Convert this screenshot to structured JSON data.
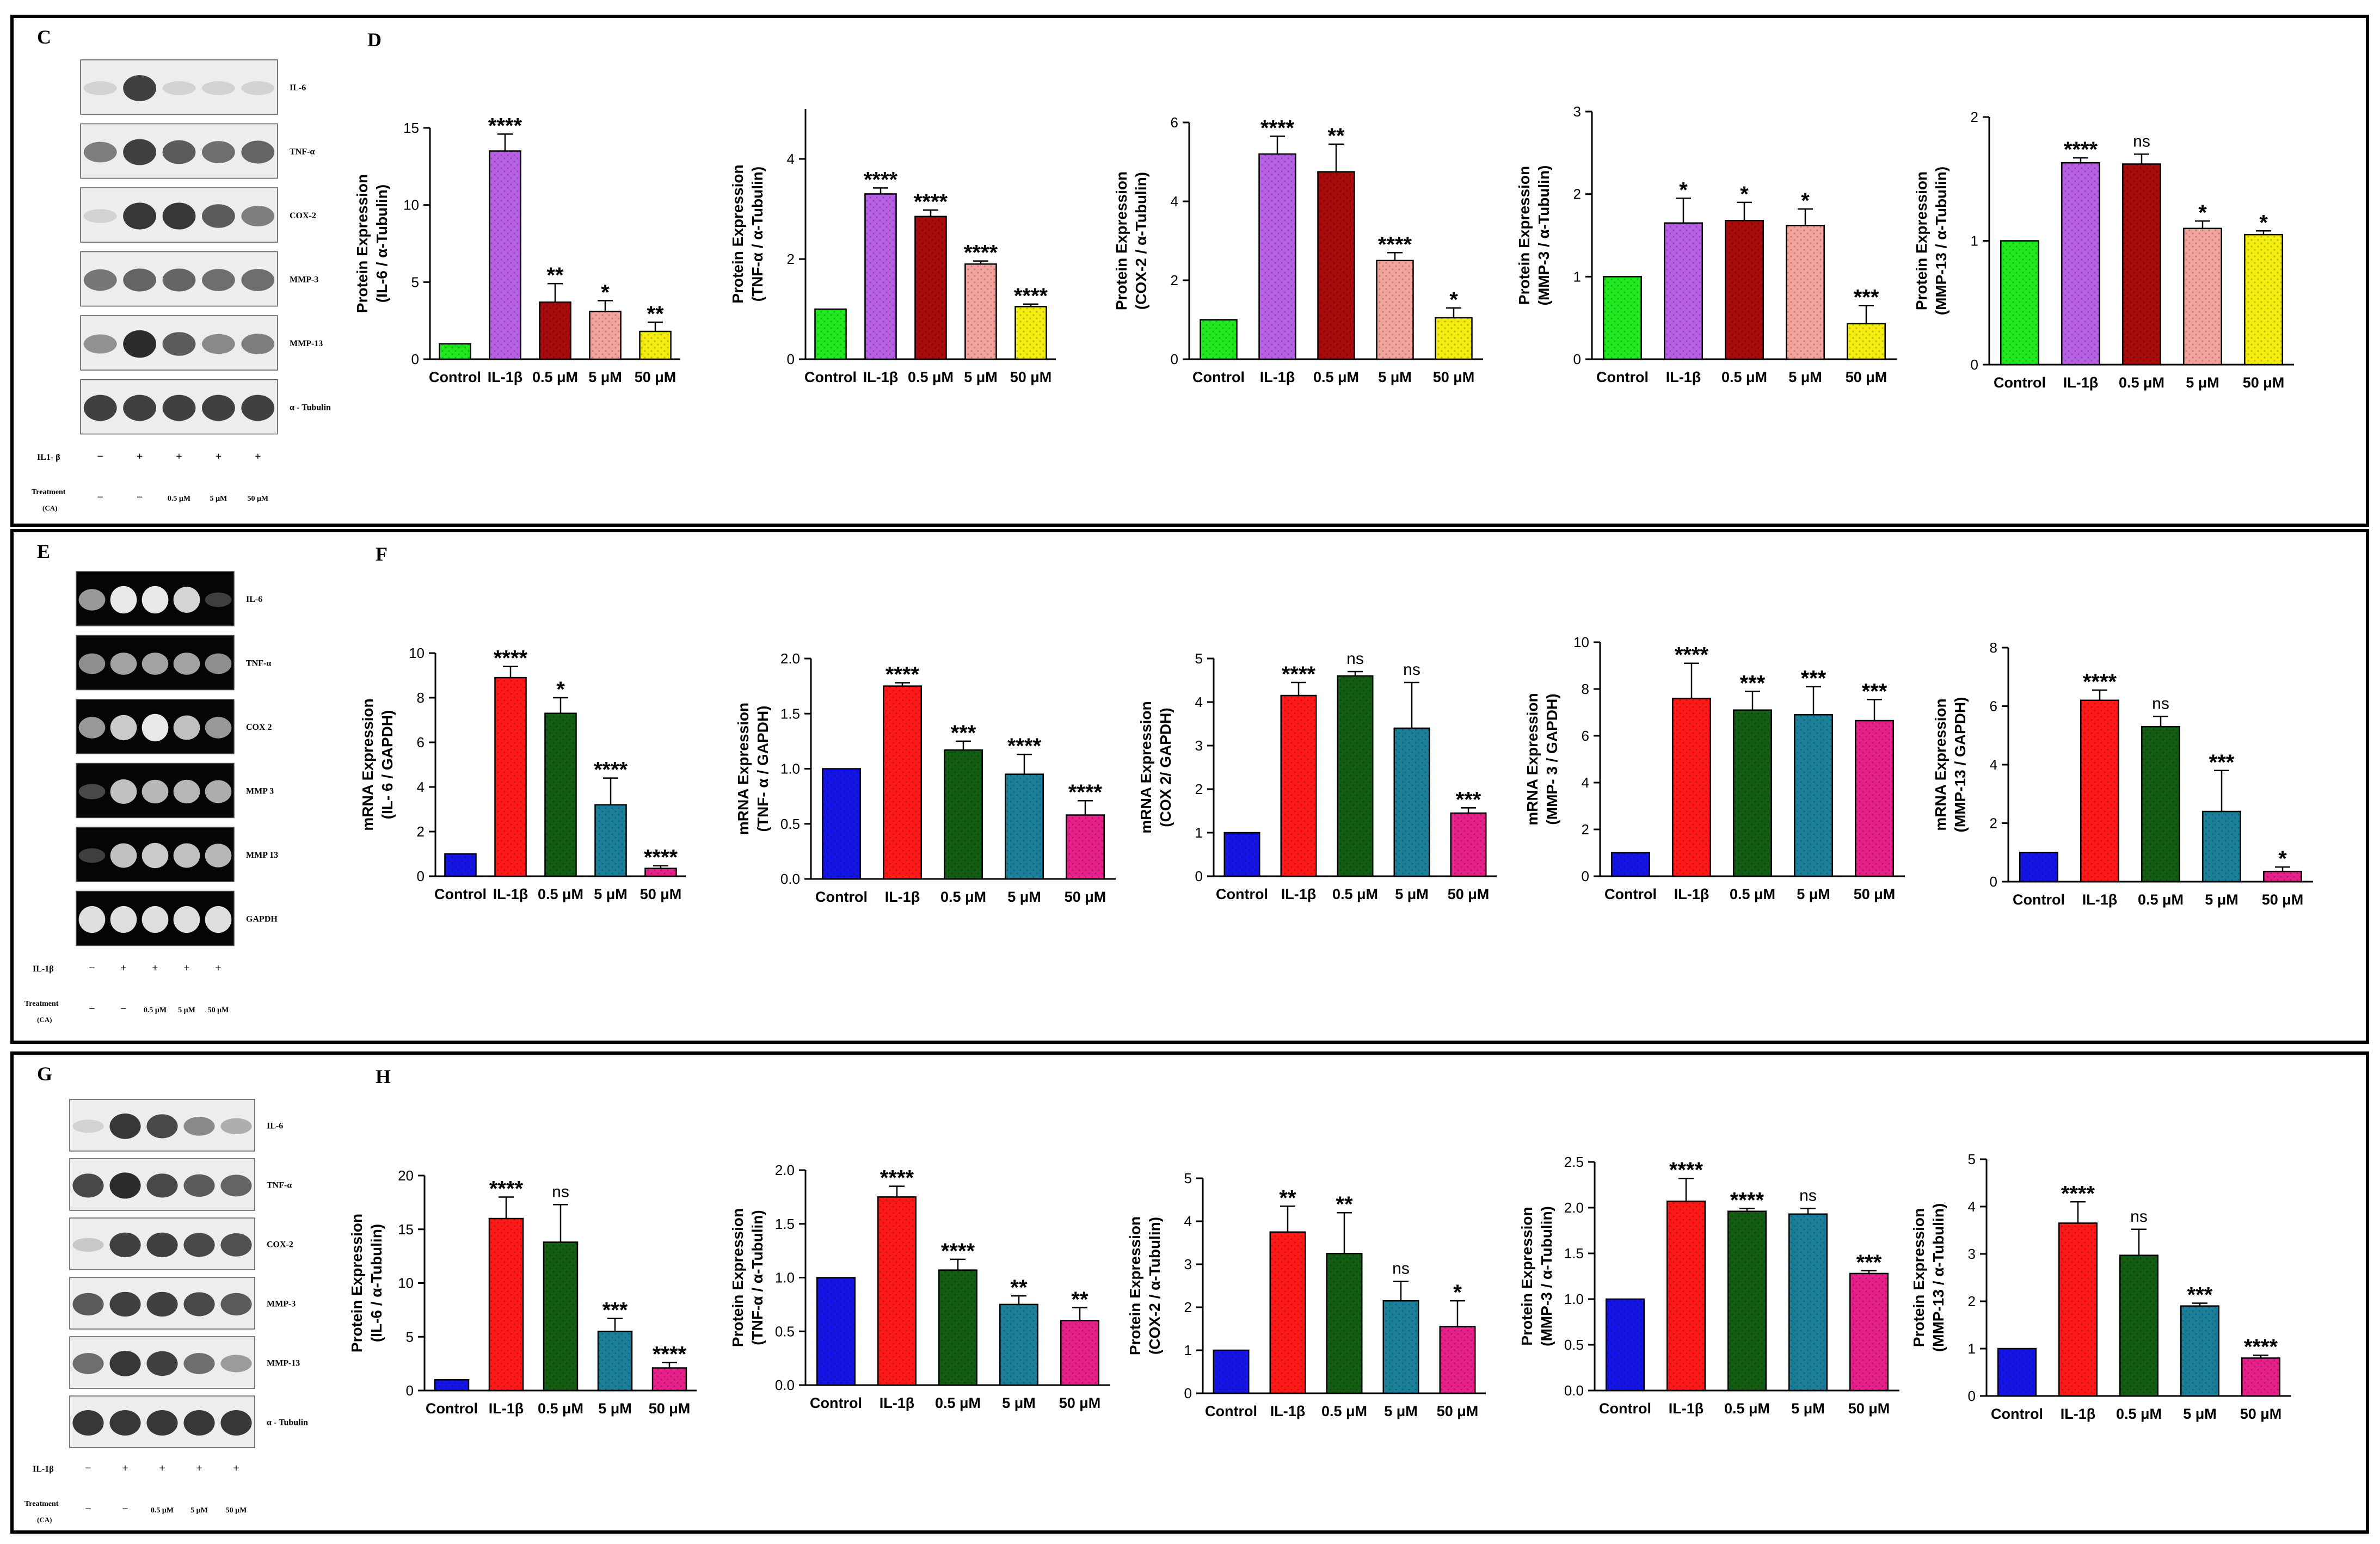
{
  "colors": {
    "green": "#1fe81f",
    "purple": "#b860e6",
    "darkred": "#a80b0b",
    "salmon": "#f4a39c",
    "yellow": "#f4ee10",
    "blue": "#1414e6",
    "red": "#ff1818",
    "darkgreen": "#135c13",
    "teal": "#1b7f9a",
    "pink": "#e8208a"
  },
  "panels": [
    {
      "id": "CD",
      "blot_letter": "C",
      "chart_letter": "D",
      "blot_labels": [
        "IL-6",
        "TNF-α",
        "COX-2",
        "MMP-3",
        "MMP-13",
        "α - Tubulin"
      ],
      "il1b_label": "IL1- β",
      "il1b_marks": [
        "−",
        "+",
        "+",
        "+",
        "+"
      ],
      "treatment_label": "Treatment",
      "treatment_sub": "(CA)",
      "treatment_marks": [
        "−",
        "−",
        "0.5 μM",
        "5 μM",
        "50 μM"
      ]
    },
    {
      "id": "EF",
      "blot_letter": "E",
      "chart_letter": "F",
      "blot_labels": [
        "IL-6",
        "TNF-α",
        "COX 2",
        "MMP 3",
        "MMP 13",
        "GAPDH"
      ],
      "il1b_label": "IL-1β",
      "il1b_marks": [
        "−",
        "+",
        "+",
        "+",
        "+"
      ],
      "treatment_label": "Treatment",
      "treatment_sub": "(CA)",
      "treatment_marks": [
        "−",
        "−",
        "0.5 μM",
        "5 μM",
        "50 μM"
      ]
    },
    {
      "id": "GH",
      "blot_letter": "G",
      "chart_letter": "H",
      "blot_labels": [
        "IL-6",
        "TNF-α",
        "COX-2",
        "MMP-3",
        "MMP-13",
        "α - Tubulin"
      ],
      "il1b_label": "IL-1β",
      "il1b_marks": [
        "−",
        "+",
        "+",
        "+",
        "+"
      ],
      "treatment_label": "Treatment",
      "treatment_sub": "(CA)",
      "treatment_marks": [
        "−",
        "−",
        "0.5 μM",
        "5 μM",
        "50 μM"
      ]
    }
  ],
  "chart_data": [
    {
      "type": "bar",
      "panel": "D",
      "categories": [
        "Control",
        "IL-1β",
        "0.5 μM",
        "5 μM",
        "50 μM"
      ],
      "values": [
        1,
        13.5,
        3.7,
        3.1,
        1.8
      ],
      "errors": [
        0,
        1.1,
        1.2,
        0.7,
        0.6
      ],
      "sig": [
        "",
        "****",
        "**",
        "*",
        "**"
      ],
      "ylabel": [
        "Protein Expression",
        "(IL-6 / α-Tubulin)"
      ],
      "ylim": [
        0,
        15
      ],
      "ticks": [
        0,
        5,
        10,
        15
      ],
      "colors": [
        "green",
        "purple",
        "darkred",
        "salmon",
        "yellow"
      ]
    },
    {
      "type": "bar",
      "panel": "D",
      "categories": [
        "Control",
        "IL-1β",
        "0.5 μM",
        "5 μM",
        "50 μM"
      ],
      "values": [
        1,
        3.3,
        2.85,
        1.9,
        1.05
      ],
      "errors": [
        0,
        0.12,
        0.13,
        0.06,
        0.05
      ],
      "sig": [
        "",
        "****",
        "****",
        "****",
        "****"
      ],
      "ylabel": [
        "Protein Expression",
        "(TNF-α / α-Tubulin)"
      ],
      "ylim": [
        0,
        5
      ],
      "ticks": [
        0,
        2,
        4
      ],
      "colors": [
        "green",
        "purple",
        "darkred",
        "salmon",
        "yellow"
      ]
    },
    {
      "type": "bar",
      "panel": "D",
      "categories": [
        "Control",
        "IL-1β",
        "0.5 μM",
        "5 μM",
        "50 μM"
      ],
      "values": [
        1,
        5.2,
        4.75,
        2.5,
        1.05
      ],
      "errors": [
        0,
        0.45,
        0.7,
        0.2,
        0.25
      ],
      "sig": [
        "",
        "****",
        "**",
        "****",
        "*"
      ],
      "ylabel": [
        "Protein Expression",
        "(COX-2 / α-Tubulin)"
      ],
      "ylim": [
        0,
        6
      ],
      "ticks": [
        0,
        2,
        4,
        6
      ],
      "colors": [
        "green",
        "purple",
        "darkred",
        "salmon",
        "yellow"
      ]
    },
    {
      "type": "bar",
      "panel": "D",
      "categories": [
        "Control",
        "IL-1β",
        "0.5 μM",
        "5 μM",
        "50 μM"
      ],
      "values": [
        1,
        1.65,
        1.68,
        1.62,
        0.43
      ],
      "errors": [
        0,
        0.3,
        0.22,
        0.2,
        0.22
      ],
      "sig": [
        "",
        "*",
        "*",
        "*",
        "***"
      ],
      "ylabel": [
        "Protein Expression",
        "(MMP-3 / α-Tubulin)"
      ],
      "ylim": [
        0,
        3
      ],
      "ticks": [
        0,
        1,
        2,
        3
      ],
      "colors": [
        "green",
        "purple",
        "darkred",
        "salmon",
        "yellow"
      ]
    },
    {
      "type": "bar",
      "panel": "D",
      "categories": [
        "Control",
        "IL-1β",
        "0.5 μM",
        "5 μM",
        "50 μM"
      ],
      "values": [
        1,
        1.63,
        1.62,
        1.1,
        1.05
      ],
      "errors": [
        0,
        0.04,
        0.08,
        0.06,
        0.03
      ],
      "sig": [
        "",
        "****",
        "ns",
        "*",
        "*"
      ],
      "ylabel": [
        "Protein Expression",
        "(MMP-13 / α-Tubulin)"
      ],
      "ylim": [
        0,
        2
      ],
      "ticks": [
        0,
        1,
        2
      ],
      "colors": [
        "green",
        "purple",
        "darkred",
        "salmon",
        "yellow"
      ]
    },
    {
      "type": "bar",
      "panel": "F",
      "categories": [
        "Control",
        "IL-1β",
        "0.5 μM",
        "5 μM",
        "50 μM"
      ],
      "values": [
        1,
        8.9,
        7.3,
        3.2,
        0.35
      ],
      "errors": [
        0,
        0.5,
        0.7,
        1.2,
        0.12
      ],
      "sig": [
        "",
        "****",
        "*",
        "****",
        "****"
      ],
      "ylabel": [
        "mRNA Expression",
        "(IL- 6 / GAPDH)"
      ],
      "ylim": [
        0,
        10
      ],
      "ticks": [
        0,
        2,
        4,
        6,
        8,
        10
      ],
      "colors": [
        "blue",
        "red",
        "darkgreen",
        "teal",
        "pink"
      ]
    },
    {
      "type": "bar",
      "panel": "F",
      "categories": [
        "Control",
        "IL-1β",
        "0.5 μM",
        "5 μM",
        "50 μM"
      ],
      "values": [
        1,
        1.75,
        1.17,
        0.95,
        0.58
      ],
      "errors": [
        0,
        0.03,
        0.08,
        0.18,
        0.13
      ],
      "sig": [
        "",
        "****",
        "***",
        "****",
        "****"
      ],
      "ylabel": [
        "mRNA Expression",
        "(TNF- α / GAPDH)"
      ],
      "ylim": [
        0,
        2
      ],
      "ticks": [
        0,
        0.5,
        1,
        1.5,
        2
      ],
      "tick_labels": [
        "0.0",
        "0.5",
        "1.0",
        "1.5",
        "2.0"
      ],
      "colors": [
        "blue",
        "red",
        "darkgreen",
        "teal",
        "pink"
      ]
    },
    {
      "type": "bar",
      "panel": "F",
      "categories": [
        "Control",
        "IL-1β",
        "0.5 μM",
        "5 μM",
        "50 μM"
      ],
      "values": [
        1,
        4.15,
        4.6,
        3.4,
        1.45
      ],
      "errors": [
        0,
        0.3,
        0.1,
        1.05,
        0.12
      ],
      "sig": [
        "",
        "****",
        "ns",
        "ns",
        "***"
      ],
      "ylabel": [
        "mRNA Expression",
        "(COX 2/ GAPDH)"
      ],
      "ylim": [
        0,
        5
      ],
      "ticks": [
        0,
        1,
        2,
        3,
        4,
        5
      ],
      "colors": [
        "blue",
        "red",
        "darkgreen",
        "teal",
        "pink"
      ]
    },
    {
      "type": "bar",
      "panel": "F",
      "categories": [
        "Control",
        "IL-1β",
        "0.5 μM",
        "5 μM",
        "50 μM"
      ],
      "values": [
        1,
        7.6,
        7.1,
        6.9,
        6.65
      ],
      "errors": [
        0,
        1.5,
        0.8,
        1.2,
        0.9
      ],
      "sig": [
        "",
        "****",
        "***",
        "***",
        "***"
      ],
      "ylabel": [
        "mRNA Expression",
        "(MMP- 3 / GAPDH)"
      ],
      "ylim": [
        0,
        10
      ],
      "ticks": [
        0,
        2,
        4,
        6,
        8,
        10
      ],
      "colors": [
        "blue",
        "red",
        "darkgreen",
        "teal",
        "pink"
      ]
    },
    {
      "type": "bar",
      "panel": "F",
      "categories": [
        "Control",
        "IL-1β",
        "0.5 μM",
        "5 μM",
        "50 μM"
      ],
      "values": [
        1,
        6.2,
        5.3,
        2.4,
        0.35
      ],
      "errors": [
        0,
        0.35,
        0.35,
        1.4,
        0.15
      ],
      "sig": [
        "",
        "****",
        "ns",
        "***",
        "*"
      ],
      "ylabel": [
        "mRNA Expression",
        "(MMP-13 / GAPDH)"
      ],
      "ylim": [
        0,
        8
      ],
      "ticks": [
        0,
        2,
        4,
        6,
        8
      ],
      "colors": [
        "blue",
        "red",
        "darkgreen",
        "teal",
        "pink"
      ]
    },
    {
      "type": "bar",
      "panel": "H",
      "categories": [
        "Control",
        "IL-1β",
        "0.5 μM",
        "5 μM",
        "50 μM"
      ],
      "values": [
        1,
        16,
        13.8,
        5.5,
        2.1
      ],
      "errors": [
        0,
        2,
        3.5,
        1.2,
        0.5
      ],
      "sig": [
        "",
        "****",
        "ns",
        "***",
        "****"
      ],
      "ylabel": [
        "Protein Expression",
        "(IL-6 / α-Tubulin)"
      ],
      "ylim": [
        0,
        20
      ],
      "ticks": [
        0,
        5,
        10,
        15,
        20
      ],
      "colors": [
        "blue",
        "red",
        "darkgreen",
        "teal",
        "pink"
      ]
    },
    {
      "type": "bar",
      "panel": "H",
      "categories": [
        "Control",
        "IL-1β",
        "0.5 μM",
        "5 μM",
        "50 μM"
      ],
      "values": [
        1,
        1.75,
        1.07,
        0.75,
        0.6
      ],
      "errors": [
        0,
        0.1,
        0.1,
        0.08,
        0.12
      ],
      "sig": [
        "",
        "****",
        "****",
        "**",
        "**"
      ],
      "ylabel": [
        "Protein Expression",
        "(TNF-α / α-Tubulin)"
      ],
      "ylim": [
        0,
        2
      ],
      "ticks": [
        0,
        0.5,
        1,
        1.5,
        2
      ],
      "tick_labels": [
        "0.0",
        "0.5",
        "1.0",
        "1.5",
        "2.0"
      ],
      "colors": [
        "blue",
        "red",
        "darkgreen",
        "teal",
        "pink"
      ]
    },
    {
      "type": "bar",
      "panel": "H",
      "categories": [
        "Control",
        "IL-1β",
        "0.5 μM",
        "5 μM",
        "50 μM"
      ],
      "values": [
        1,
        3.75,
        3.25,
        2.15,
        1.55
      ],
      "errors": [
        0,
        0.6,
        0.95,
        0.45,
        0.6
      ],
      "sig": [
        "",
        "**",
        "**",
        "ns",
        "*"
      ],
      "ylabel": [
        "Protein Expression",
        "(COX-2 / α-Tubulin)"
      ],
      "ylim": [
        0,
        5
      ],
      "ticks": [
        0,
        1,
        2,
        3,
        4,
        5
      ],
      "colors": [
        "blue",
        "red",
        "darkgreen",
        "teal",
        "pink"
      ]
    },
    {
      "type": "bar",
      "panel": "H",
      "categories": [
        "Control",
        "IL-1β",
        "0.5 μM",
        "5 μM",
        "50 μM"
      ],
      "values": [
        1,
        2.07,
        1.96,
        1.93,
        1.28
      ],
      "errors": [
        0,
        0.25,
        0.03,
        0.06,
        0.03
      ],
      "sig": [
        "",
        "****",
        "****",
        "ns",
        "***"
      ],
      "ylabel": [
        "Protein Expression",
        "(MMP-3 / α-Tubulin)"
      ],
      "ylim": [
        0,
        2.5
      ],
      "ticks": [
        0,
        0.5,
        1,
        1.5,
        2,
        2.5
      ],
      "tick_labels": [
        "0.0",
        "0.5",
        "1.0",
        "1.5",
        "2.0",
        "2.5"
      ],
      "colors": [
        "blue",
        "red",
        "darkgreen",
        "teal",
        "pink"
      ]
    },
    {
      "type": "bar",
      "panel": "H",
      "categories": [
        "Control",
        "IL-1β",
        "0.5 μM",
        "5 μM",
        "50 μM"
      ],
      "values": [
        1,
        3.65,
        2.97,
        1.9,
        0.8
      ],
      "errors": [
        0,
        0.45,
        0.55,
        0.06,
        0.06
      ],
      "sig": [
        "",
        "****",
        "ns",
        "***",
        "****"
      ],
      "ylabel": [
        "Protein Expression",
        "(MMP-13 / α-Tubulin)"
      ],
      "ylim": [
        0,
        5
      ],
      "ticks": [
        0,
        1,
        2,
        3,
        4,
        5
      ],
      "colors": [
        "blue",
        "red",
        "darkgreen",
        "teal",
        "pink"
      ]
    }
  ]
}
